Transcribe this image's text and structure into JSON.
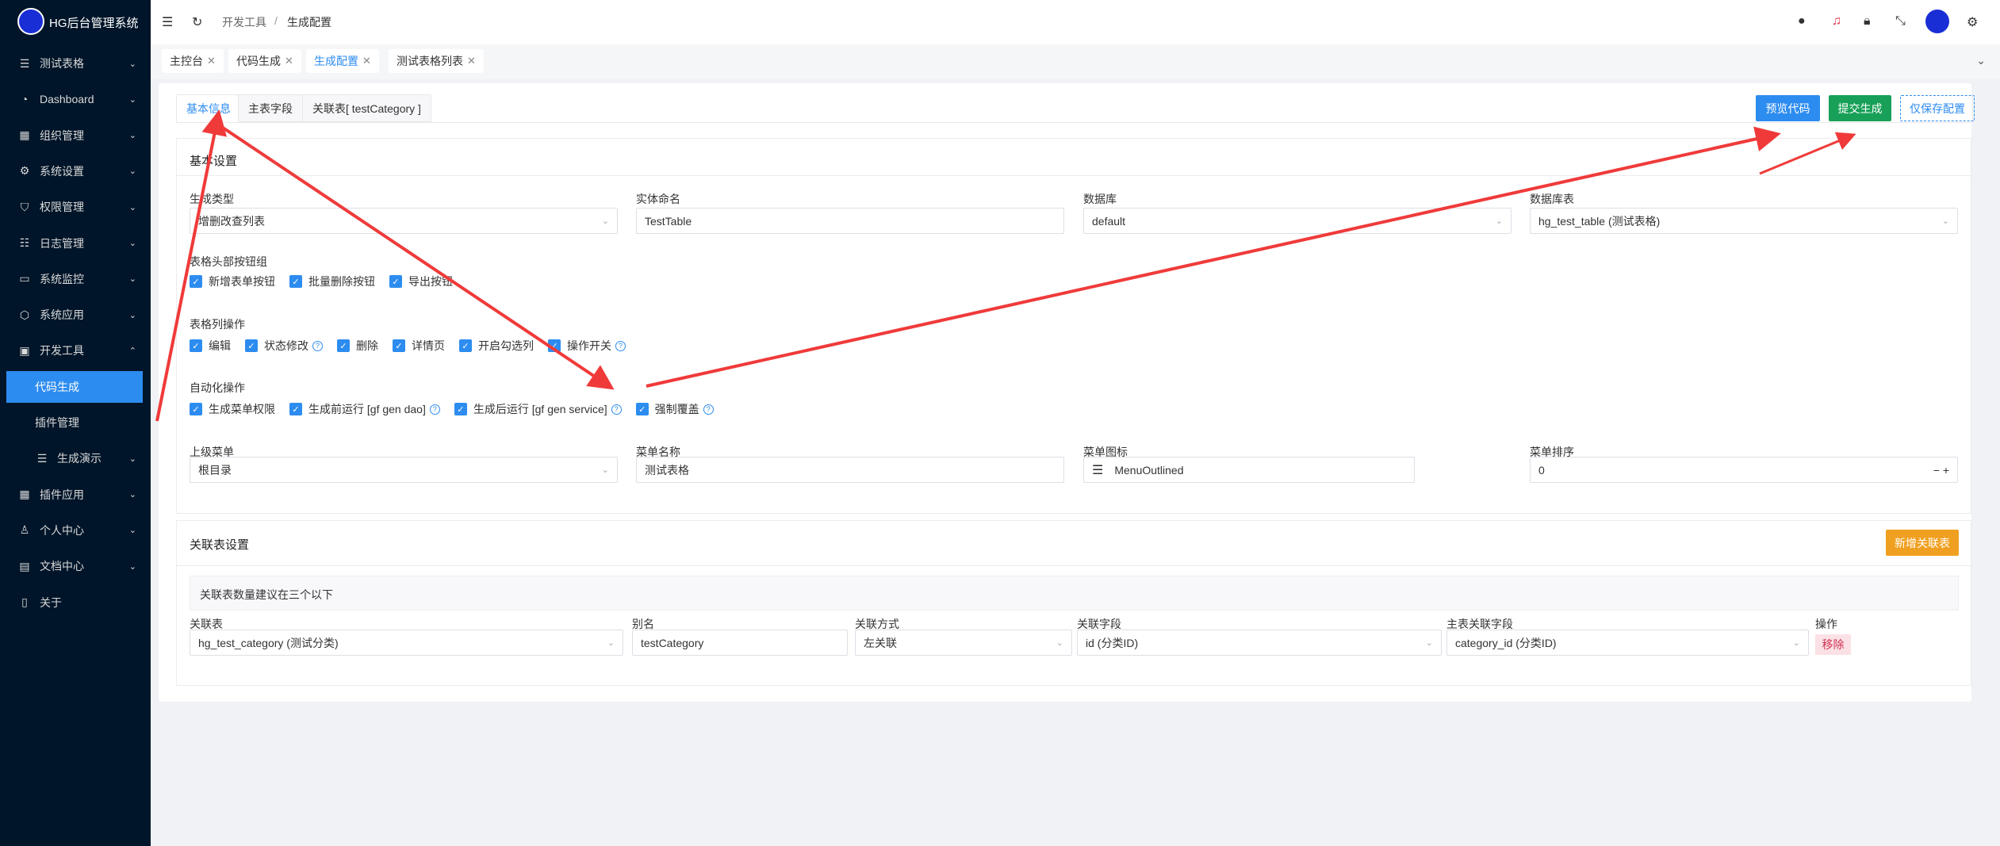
{
  "app": {
    "title": "HG后台管理系统"
  },
  "sidebar": {
    "items": [
      {
        "label": "测试表格",
        "icon": "menu-icon",
        "chev": "⌄"
      },
      {
        "label": "Dashboard",
        "icon": "dashboard-icon",
        "chev": "⌄"
      },
      {
        "label": "组织管理",
        "icon": "grid-icon",
        "chev": "⌄"
      },
      {
        "label": "系统设置",
        "icon": "gear-icon",
        "chev": "⌄"
      },
      {
        "label": "权限管理",
        "icon": "shield-icon",
        "chev": "⌄"
      },
      {
        "label": "日志管理",
        "icon": "list-icon",
        "chev": "⌄"
      },
      {
        "label": "系统监控",
        "icon": "monitor-icon",
        "chev": "⌄"
      },
      {
        "label": "系统应用",
        "icon": "cube-icon",
        "chev": "⌄"
      },
      {
        "label": "开发工具",
        "icon": "code-icon",
        "chev": "⌃"
      },
      {
        "label": "代码生成",
        "icon": "",
        "chev": ""
      },
      {
        "label": "插件管理",
        "icon": "",
        "chev": ""
      },
      {
        "label": "生成演示",
        "icon": "menu-icon",
        "chev": "⌄"
      },
      {
        "label": "插件应用",
        "icon": "grid-icon",
        "chev": "⌄"
      },
      {
        "label": "个人中心",
        "icon": "user-icon",
        "chev": "⌄"
      },
      {
        "label": "文档中心",
        "icon": "doc-icon",
        "chev": "⌄"
      },
      {
        "label": "关于",
        "icon": "info-icon",
        "chev": ""
      }
    ]
  },
  "header": {
    "breadcrumb": [
      "开发工具",
      "生成配置"
    ],
    "separator": "/"
  },
  "page_tabs": [
    {
      "label": "主控台"
    },
    {
      "label": "代码生成"
    },
    {
      "label": "生成配置",
      "active": true
    },
    {
      "label": "测试表格列表"
    }
  ],
  "inner_tabs": [
    {
      "label": "基本信息",
      "active": true
    },
    {
      "label": "主表字段"
    },
    {
      "label": "关联表[ testCategory ]"
    }
  ],
  "actions": {
    "preview": "预览代码",
    "submit": "提交生成",
    "save_only": "仅保存配置"
  },
  "colors": {
    "primary": "#2d8cf0",
    "success": "#18a058",
    "warning": "#f0a020",
    "sidebar": "#001529",
    "annotation": "#f03a3a"
  },
  "basic": {
    "title": "基本设置",
    "fields": [
      {
        "label": "生成类型",
        "value": "增删改查列表"
      },
      {
        "label": "实体命名",
        "value": "TestTable"
      },
      {
        "label": "数据库",
        "value": "default"
      },
      {
        "label": "数据库表",
        "value": "hg_test_table (测试表格)"
      }
    ],
    "header_buttons": {
      "label": "表格头部按钮组",
      "options": [
        "新增表单按钮",
        "批量删除按钮",
        "导出按钮"
      ]
    },
    "column_ops": {
      "label": "表格列操作",
      "options": [
        "编辑",
        "状态修改",
        "删除",
        "详情页",
        "开启勾选列",
        "操作开关"
      ]
    },
    "auto_ops": {
      "label": "自动化操作",
      "options": [
        "生成菜单权限",
        "生成前运行 [gf gen dao]",
        "生成后运行 [gf gen service]",
        "强制覆盖"
      ]
    },
    "menu_fields": [
      {
        "label": "上级菜单",
        "value": "根目录"
      },
      {
        "label": "菜单名称",
        "value": "测试表格"
      },
      {
        "label": "菜单图标",
        "value": "MenuOutlined"
      },
      {
        "label": "菜单排序",
        "value": "0"
      }
    ]
  },
  "join": {
    "title": "关联表设置",
    "add_button": "新增关联表",
    "notice": "关联表数量建议在三个以下",
    "columns": [
      "关联表",
      "别名",
      "关联方式",
      "关联字段",
      "主表关联字段",
      "操作"
    ],
    "row": {
      "table": "hg_test_category (测试分类)",
      "alias": "testCategory",
      "mode": "左关联",
      "field": "id (分类ID)",
      "main_field": "category_id (分类ID)",
      "remove": "移除"
    }
  }
}
